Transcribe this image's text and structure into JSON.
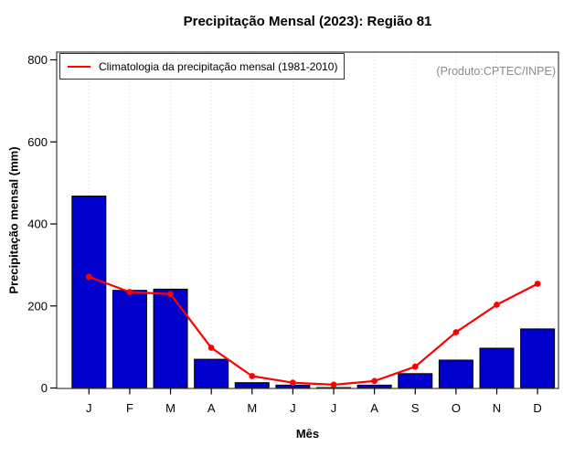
{
  "page": {
    "title": "Precipitação Mensal (2023): Região 81",
    "watermark": "(Produto:CPTEC/INPE)",
    "xlabel": "Mês",
    "ylabel": "Precipitação mensal (mm)",
    "legend_label": "Climatologia da precipitação mensal (1981-2010)"
  },
  "chart_data": {
    "type": "bar",
    "title": "Precipitação Mensal (2023): Região 81",
    "xlabel": "Mês",
    "ylabel": "Precipitação mensal (mm)",
    "categories": [
      "J",
      "F",
      "M",
      "A",
      "M",
      "J",
      "J",
      "A",
      "S",
      "O",
      "N",
      "D"
    ],
    "series": [
      {
        "name": "Precipitação mensal (2023)",
        "type": "bar",
        "color": "#0000CD",
        "values": [
          468,
          238,
          241,
          70,
          13,
          7,
          1,
          7,
          35,
          68,
          97,
          144
        ]
      },
      {
        "name": "Climatologia da precipitação mensal (1981-2010)",
        "type": "line",
        "color": "#FF0000",
        "values": [
          271,
          234,
          229,
          98,
          29,
          13,
          8,
          17,
          52,
          136,
          203,
          254
        ]
      }
    ],
    "yticks": [
      0,
      200,
      400,
      600,
      800
    ],
    "ylim": [
      0,
      820
    ],
    "grid": "vertical-dotted",
    "legend_position": "top-left",
    "annotations": [
      "(Produto:CPTEC/INPE)"
    ]
  },
  "colors": {
    "bar": "#0000CD",
    "bar_border": "#000000",
    "line": "#FF0000",
    "grid": "#D8D8D8",
    "frame": "#3d3d3d",
    "axis": "#000000",
    "watermark": "#8C8C8C",
    "background": "#FFFFFF"
  }
}
